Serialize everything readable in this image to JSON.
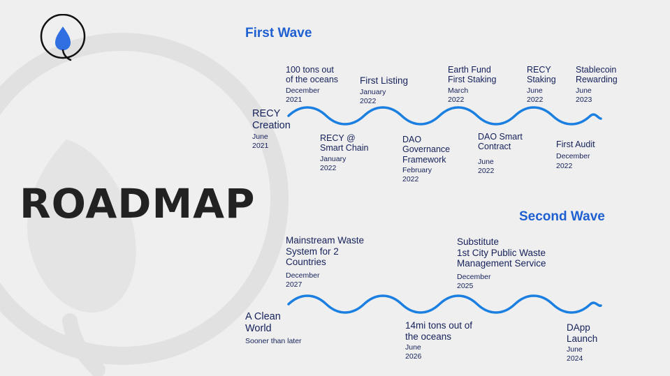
{
  "page": {
    "title": "ROADMAP"
  },
  "colors": {
    "accent": "#1e5fd1",
    "wave": "#1a7fe0",
    "text": "#14205a",
    "bg": "#efefef"
  },
  "first_wave": {
    "title": "First Wave",
    "milestones": [
      {
        "label": "RECY\nCreation",
        "date": "June\n2021"
      },
      {
        "label": "100 tons out\nof the oceans",
        "date": "December\n2021"
      },
      {
        "label": "RECY @\nSmart Chain",
        "date": "January\n2022"
      },
      {
        "label": "First Listing",
        "date": "January\n2022"
      },
      {
        "label": "DAO\nGovernance\nFramework",
        "date": "February\n2022"
      },
      {
        "label": "Earth Fund\nFirst Staking",
        "date": "March\n2022"
      },
      {
        "label": "DAO Smart\nContract",
        "date": "June\n2022"
      },
      {
        "label": "RECY\nStaking",
        "date": "June\n2022"
      },
      {
        "label": "First Audit",
        "date": "December\n2022"
      },
      {
        "label": "Stablecoin\nRewarding",
        "date": "June\n2023"
      }
    ]
  },
  "second_wave": {
    "title": "Second Wave",
    "milestones": [
      {
        "label": "A Clean\nWorld",
        "date": "Sooner than later"
      },
      {
        "label": "Mainstream Waste\nSystem for 2\nCountries",
        "date": "December\n2027"
      },
      {
        "label": "14mi tons out of\nthe oceans",
        "date": "June\n2026"
      },
      {
        "label": "Substitute\n1st City Public Waste\nManagement Service",
        "date": "December\n2025"
      },
      {
        "label": "DApp\nLaunch",
        "date": "June\n2024"
      }
    ]
  }
}
